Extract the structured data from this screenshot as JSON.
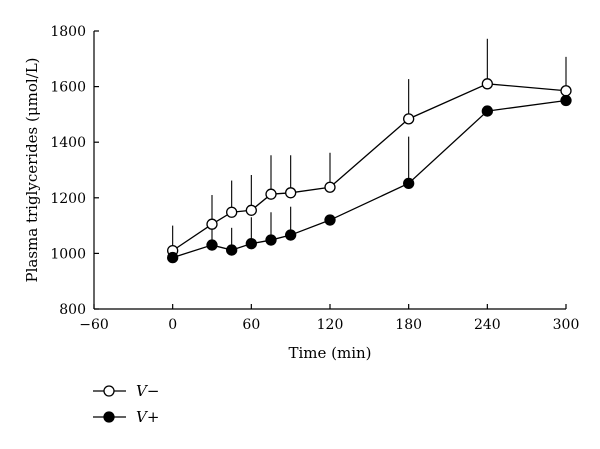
{
  "chart_data": {
    "type": "line",
    "xlabel": "Time (min)",
    "ylabel": "Plasma triglycerides (μmol/L)",
    "xlim": [
      -60,
      300
    ],
    "ylim": [
      800,
      1800
    ],
    "xticks": [
      "−60",
      "0",
      "60",
      "120",
      "180",
      "240",
      "300"
    ],
    "xtick_values": [
      -60,
      0,
      60,
      120,
      180,
      240,
      300
    ],
    "yticks": [
      "800",
      "1000",
      "1200",
      "1400",
      "1600",
      "1800"
    ],
    "ytick_values": [
      800,
      1000,
      1200,
      1400,
      1600,
      1800
    ],
    "grid": false,
    "legend_position": "bottom-left",
    "series": [
      {
        "name": "V−",
        "marker": "open-circle",
        "x": [
          0,
          30,
          45,
          60,
          75,
          90,
          120,
          180,
          240,
          300
        ],
        "y": [
          1010,
          1105,
          1148,
          1155,
          1213,
          1218,
          1238,
          1484,
          1610,
          1585
        ],
        "error_upper": [
          1100,
          1210,
          1262,
          1282,
          1353,
          1353,
          1362,
          1627,
          1772,
          1707
        ]
      },
      {
        "name": "V+",
        "marker": "filled-circle",
        "x": [
          0,
          30,
          45,
          60,
          75,
          90,
          120,
          180,
          240,
          300
        ],
        "y": [
          985,
          1030,
          1012,
          1035,
          1048,
          1066,
          1120,
          1252,
          1512,
          1550
        ],
        "error_upper": [
          985,
          1112,
          1092,
          1130,
          1148,
          1168,
          1120,
          1420,
          1512,
          1550
        ]
      }
    ]
  }
}
